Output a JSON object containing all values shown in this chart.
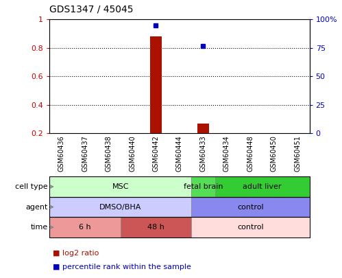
{
  "title": "GDS1347 / 45045",
  "samples": [
    "GSM60436",
    "GSM60437",
    "GSM60438",
    "GSM60440",
    "GSM60442",
    "GSM60444",
    "GSM60433",
    "GSM60434",
    "GSM60448",
    "GSM60450",
    "GSM60451"
  ],
  "log2_ratio": [
    0,
    0,
    0,
    0,
    0.88,
    0,
    0.27,
    0,
    0,
    0,
    0
  ],
  "percentile_rank": [
    0,
    0,
    0,
    0,
    95,
    0,
    77,
    0,
    0,
    0,
    0
  ],
  "ylim_left": [
    0.2,
    1.0
  ],
  "ylim_right": [
    0,
    100
  ],
  "yticks_left": [
    0.2,
    0.4,
    0.6,
    0.8,
    1.0
  ],
  "yticks_right": [
    0,
    25,
    50,
    75,
    100
  ],
  "ytick_labels_left": [
    "0.2",
    "0.4",
    "0.6",
    "0.8",
    "1"
  ],
  "ytick_labels_right": [
    "0",
    "25",
    "50",
    "75",
    "100%"
  ],
  "bar_color": "#aa1100",
  "dot_color": "#0000bb",
  "cell_type_groups": [
    {
      "label": "MSC",
      "start": 0,
      "end": 5,
      "color": "#ccffcc",
      "border_color": "#888888"
    },
    {
      "label": "fetal brain",
      "start": 6,
      "end": 6,
      "color": "#55dd55",
      "border_color": "#888888"
    },
    {
      "label": "adult liver",
      "start": 7,
      "end": 10,
      "color": "#33cc33",
      "border_color": "#888888"
    }
  ],
  "agent_groups": [
    {
      "label": "DMSO/BHA",
      "start": 0,
      "end": 5,
      "color": "#ccccff",
      "border_color": "#888888"
    },
    {
      "label": "control",
      "start": 6,
      "end": 10,
      "color": "#8888ee",
      "border_color": "#888888"
    }
  ],
  "time_groups": [
    {
      "label": "6 h",
      "start": 0,
      "end": 2,
      "color": "#ee9999",
      "border_color": "#888888"
    },
    {
      "label": "48 h",
      "start": 3,
      "end": 5,
      "color": "#cc5555",
      "border_color": "#888888"
    },
    {
      "label": "control",
      "start": 6,
      "end": 10,
      "color": "#ffdddd",
      "border_color": "#888888"
    }
  ],
  "bg_color": "#ffffff"
}
